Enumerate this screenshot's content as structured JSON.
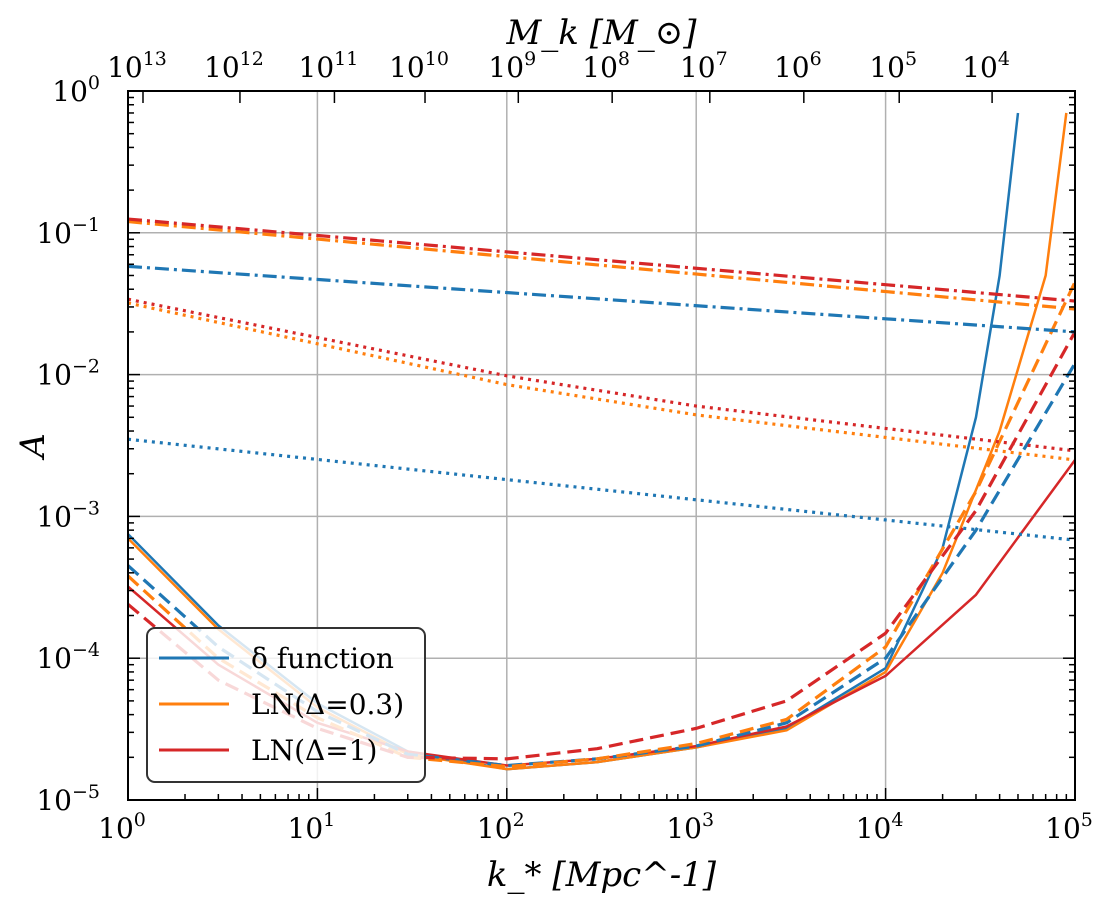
{
  "chart_data": {
    "type": "line",
    "title": "",
    "xlabel": "k_* [Mpc^-1]",
    "ylabel": "A",
    "top_label": "M_k [M_⊙]",
    "xscale": "log",
    "yscale": "log",
    "xlim": [
      1,
      100000
    ],
    "ylim": [
      1e-05,
      1
    ],
    "grid": true,
    "x_tick_labels": [
      {
        "base": "10",
        "exp": "0",
        "value": 1
      },
      {
        "base": "10",
        "exp": "1",
        "value": 10
      },
      {
        "base": "10",
        "exp": "2",
        "value": 100
      },
      {
        "base": "10",
        "exp": "3",
        "value": 1000
      },
      {
        "base": "10",
        "exp": "4",
        "value": 10000
      },
      {
        "base": "10",
        "exp": "5",
        "value": 100000
      }
    ],
    "y_tick_labels": [
      {
        "base": "10",
        "exp": "−5",
        "value": 1e-05
      },
      {
        "base": "10",
        "exp": "−4",
        "value": 0.0001
      },
      {
        "base": "10",
        "exp": "−3",
        "value": 0.001
      },
      {
        "base": "10",
        "exp": "−2",
        "value": 0.01
      },
      {
        "base": "10",
        "exp": "−1",
        "value": 0.1
      },
      {
        "base": "10",
        "exp": "0",
        "value": 1
      }
    ],
    "top_tick_labels": [
      {
        "base": "10",
        "exp": "13",
        "k": 1.2
      },
      {
        "base": "10",
        "exp": "12",
        "k": 3.9
      },
      {
        "base": "10",
        "exp": "11",
        "k": 12.3
      },
      {
        "base": "10",
        "exp": "10",
        "k": 37
      },
      {
        "base": "10",
        "exp": "9",
        "k": 115
      },
      {
        "base": "10",
        "exp": "8",
        "k": 360
      },
      {
        "base": "10",
        "exp": "7",
        "k": 1180
      },
      {
        "base": "10",
        "exp": "6",
        "k": 3700
      },
      {
        "base": "10",
        "exp": "5",
        "k": 11800
      },
      {
        "base": "10",
        "exp": "4",
        "k": 36500
      }
    ],
    "legend": {
      "location": "lower-left",
      "entries": [
        {
          "label": "δ function",
          "color": "#1f77b4"
        },
        {
          "label": "LN(Δ=0.3)",
          "color": "#ff7f0e"
        },
        {
          "label": "LN(Δ=1)",
          "color": "#d62728"
        }
      ]
    },
    "series": [
      {
        "name": "δ function (solid)",
        "color": "#1f77b4",
        "style": "solid",
        "points": [
          [
            1,
            0.00075
          ],
          [
            3,
            0.00017
          ],
          [
            10,
            4.8e-05
          ],
          [
            30,
            2.2e-05
          ],
          [
            100,
            1.65e-05
          ],
          [
            300,
            1.85e-05
          ],
          [
            1000,
            2.35e-05
          ],
          [
            3000,
            3.2e-05
          ],
          [
            10000,
            8.5e-05
          ],
          [
            20000,
            0.0006
          ],
          [
            30000,
            0.005
          ],
          [
            40000,
            0.05
          ],
          [
            50000,
            0.7
          ]
        ]
      },
      {
        "name": "LN(Δ=0.3) (solid)",
        "color": "#ff7f0e",
        "style": "solid",
        "points": [
          [
            1,
            0.0007
          ],
          [
            3,
            0.00016
          ],
          [
            10,
            4.5e-05
          ],
          [
            30,
            2.1e-05
          ],
          [
            100,
            1.65e-05
          ],
          [
            300,
            1.85e-05
          ],
          [
            1000,
            2.35e-05
          ],
          [
            3000,
            3.1e-05
          ],
          [
            10000,
            8e-05
          ],
          [
            20000,
            0.0004
          ],
          [
            40000,
            0.004
          ],
          [
            70000,
            0.05
          ],
          [
            90000,
            0.7
          ]
        ]
      },
      {
        "name": "LN(Δ=1) (solid)",
        "color": "#d62728",
        "style": "solid",
        "points": [
          [
            1,
            0.00032
          ],
          [
            3,
            9e-05
          ],
          [
            10,
            3.5e-05
          ],
          [
            30,
            2.2e-05
          ],
          [
            100,
            1.75e-05
          ],
          [
            300,
            1.95e-05
          ],
          [
            1000,
            2.4e-05
          ],
          [
            3000,
            3.3e-05
          ],
          [
            10000,
            7.5e-05
          ],
          [
            30000,
            0.00028
          ],
          [
            100000,
            0.0025
          ]
        ]
      },
      {
        "name": "δ function (dashed)",
        "color": "#1f77b4",
        "style": "dashed",
        "points": [
          [
            1,
            0.00045
          ],
          [
            3,
            0.00012
          ],
          [
            10,
            4.2e-05
          ],
          [
            30,
            2.1e-05
          ],
          [
            100,
            1.75e-05
          ],
          [
            300,
            1.95e-05
          ],
          [
            1000,
            2.4e-05
          ],
          [
            3000,
            3.5e-05
          ],
          [
            10000,
            0.0001
          ],
          [
            30000,
            0.0008
          ],
          [
            100000,
            0.012
          ]
        ]
      },
      {
        "name": "LN(Δ=0.3) (dashed)",
        "color": "#ff7f0e",
        "style": "dashed",
        "points": [
          [
            1,
            0.00038
          ],
          [
            3,
            0.0001
          ],
          [
            10,
            3.8e-05
          ],
          [
            30,
            2e-05
          ],
          [
            100,
            1.72e-05
          ],
          [
            300,
            1.95e-05
          ],
          [
            1000,
            2.5e-05
          ],
          [
            3000,
            3.7e-05
          ],
          [
            10000,
            0.00012
          ],
          [
            30000,
            0.0015
          ],
          [
            100000,
            0.045
          ]
        ]
      },
      {
        "name": "LN(Δ=1) (dashed)",
        "color": "#d62728",
        "style": "dashed",
        "points": [
          [
            1,
            0.00024
          ],
          [
            3,
            7e-05
          ],
          [
            10,
            3.2e-05
          ],
          [
            30,
            2e-05
          ],
          [
            100,
            1.95e-05
          ],
          [
            300,
            2.3e-05
          ],
          [
            1000,
            3.2e-05
          ],
          [
            3000,
            5e-05
          ],
          [
            10000,
            0.00015
          ],
          [
            30000,
            0.0011
          ],
          [
            100000,
            0.02
          ]
        ]
      },
      {
        "name": "δ function (dash-dot)",
        "color": "#1f77b4",
        "style": "dashdot",
        "points": [
          [
            1,
            0.058
          ],
          [
            100000,
            0.02
          ]
        ]
      },
      {
        "name": "LN(Δ=0.3) (dash-dot)",
        "color": "#ff7f0e",
        "style": "dashdot",
        "points": [
          [
            1,
            0.12
          ],
          [
            100000,
            0.029
          ]
        ]
      },
      {
        "name": "LN(Δ=1) (dash-dot)",
        "color": "#d62728",
        "style": "dashdot",
        "points": [
          [
            1,
            0.125
          ],
          [
            100000,
            0.033
          ]
        ]
      },
      {
        "name": "δ function (dotted)",
        "color": "#1f77b4",
        "style": "dotted",
        "points": [
          [
            1,
            0.0035
          ],
          [
            100000,
            0.00068
          ]
        ]
      },
      {
        "name": "LN(Δ=0.3) (dotted)",
        "color": "#ff7f0e",
        "style": "dotted",
        "points": [
          [
            1,
            0.032
          ],
          [
            100,
            0.0085
          ],
          [
            1000,
            0.0052
          ],
          [
            100000,
            0.0025
          ]
        ]
      },
      {
        "name": "LN(Δ=1) (dotted)",
        "color": "#d62728",
        "style": "dotted",
        "points": [
          [
            1,
            0.034
          ],
          [
            100,
            0.0098
          ],
          [
            1000,
            0.006
          ],
          [
            100000,
            0.0029
          ]
        ]
      }
    ]
  }
}
